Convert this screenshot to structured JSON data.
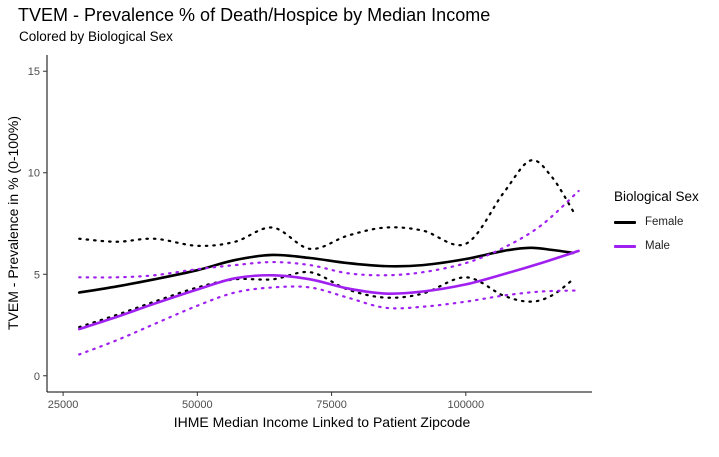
{
  "chart_data": {
    "type": "line",
    "title": "TVEM - Prevalence % of Death/Hospice by Median Income",
    "subtitle": "Colored by Biological Sex",
    "xlabel": "IHME Median Income Linked to Patient Zipcode",
    "ylabel": "TVEM - Prevalence in % (0-100%)",
    "xlim": [
      22000,
      123500
    ],
    "ylim": [
      -0.8,
      15.8
    ],
    "x_ticks": [
      25000,
      50000,
      75000,
      100000
    ],
    "x_tick_labels": [
      "25000",
      "50000",
      "75000",
      "100000"
    ],
    "y_ticks": [
      0,
      5,
      10,
      15
    ],
    "y_tick_labels": [
      "0",
      "5",
      "10",
      "15"
    ],
    "grid": false,
    "legend": {
      "title": "Biological Sex",
      "placement": "right"
    },
    "series": [
      {
        "name": "Female",
        "color": "#000000",
        "x": [
          28000,
          35000,
          42000,
          50000,
          57000,
          64000,
          71000,
          78000,
          85000,
          92000,
          100000,
          107000,
          112000,
          116000,
          120000
        ],
        "estimate": [
          4.1,
          4.4,
          4.75,
          5.2,
          5.7,
          5.95,
          5.8,
          5.55,
          5.4,
          5.45,
          5.75,
          6.15,
          6.3,
          6.2,
          6.05
        ],
        "upper": [
          6.75,
          6.6,
          6.75,
          6.4,
          6.6,
          7.3,
          6.25,
          6.9,
          7.3,
          7.15,
          6.5,
          9.0,
          10.6,
          9.8,
          8.1
        ],
        "lower": [
          2.4,
          3.0,
          3.65,
          4.35,
          4.75,
          4.75,
          5.1,
          4.25,
          3.85,
          4.05,
          4.85,
          3.95,
          3.65,
          3.95,
          4.75
        ]
      },
      {
        "name": "Male",
        "color": "#a020f0",
        "x": [
          28000,
          35000,
          42000,
          50000,
          57000,
          64000,
          71000,
          78000,
          85000,
          92000,
          100000,
          107000,
          114000,
          121000
        ],
        "estimate": [
          2.3,
          2.9,
          3.55,
          4.25,
          4.8,
          4.95,
          4.75,
          4.3,
          4.05,
          4.15,
          4.5,
          5.0,
          5.55,
          6.15
        ],
        "upper": [
          4.85,
          4.85,
          4.95,
          5.25,
          5.45,
          5.6,
          5.45,
          5.05,
          4.95,
          5.1,
          5.55,
          6.3,
          7.4,
          9.1
        ],
        "lower": [
          1.05,
          1.75,
          2.55,
          3.45,
          4.1,
          4.35,
          4.35,
          3.85,
          3.35,
          3.4,
          3.65,
          3.95,
          4.15,
          4.2
        ]
      }
    ]
  }
}
